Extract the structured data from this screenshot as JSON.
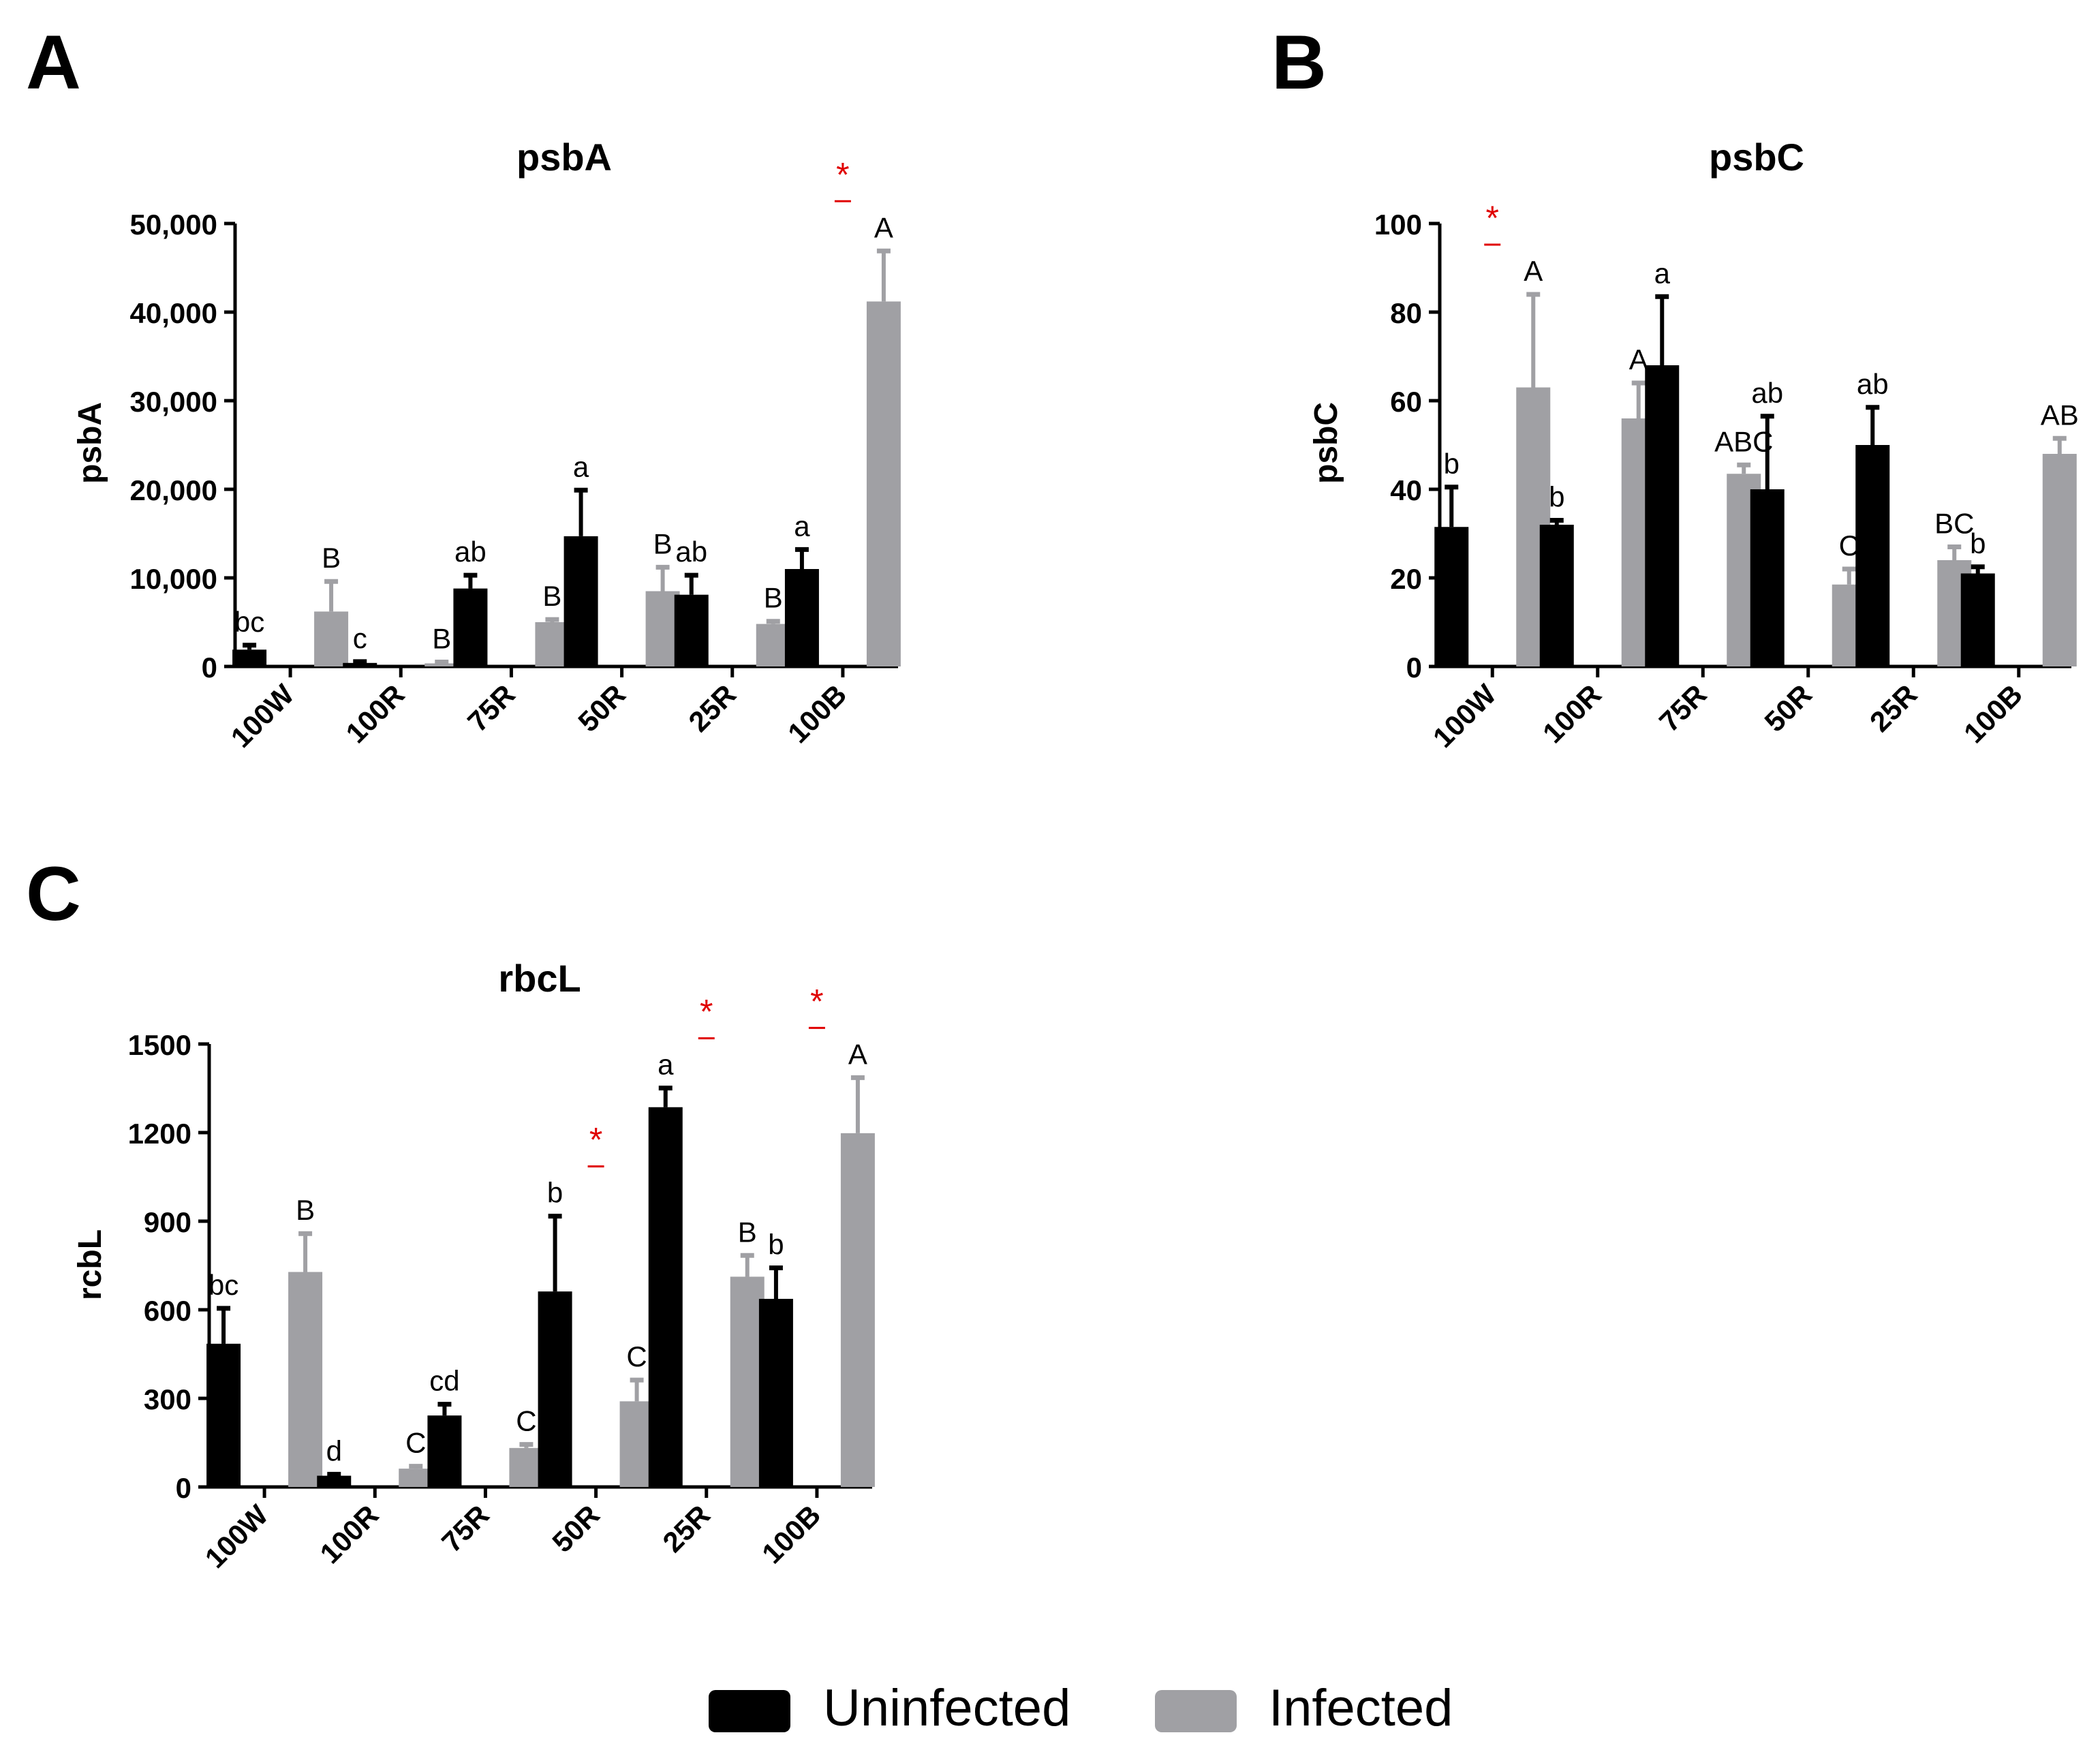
{
  "colors": {
    "uninfected": "#000000",
    "infected": "#a0a0a4",
    "significance": "#e00000",
    "axis": "#000000"
  },
  "legend": {
    "placement": "bottom-center",
    "items": [
      {
        "label": "Uninfected",
        "color": "#000000"
      },
      {
        "label": "Infected",
        "color": "#a0a0a4"
      }
    ]
  },
  "chart_data": [
    {
      "panel": "A",
      "type": "bar",
      "title": "psbA",
      "ylabel": "psbA",
      "xlabel": "",
      "ylim": [
        0,
        50000
      ],
      "yticks": [
        0,
        10000,
        20000,
        30000,
        40000,
        50000
      ],
      "ytick_labels": [
        "0",
        "10,000",
        "20,000",
        "30,000",
        "40,000",
        "50,000"
      ],
      "categories": [
        "100W",
        "100R",
        "75R",
        "50R",
        "25R",
        "100B"
      ],
      "series": [
        {
          "name": "Uninfected",
          "values": [
            1900,
            400,
            8800,
            14700,
            8100,
            11000
          ],
          "errors": [
            500,
            150,
            1500,
            5200,
            2200,
            2200
          ],
          "letters": [
            "bc",
            "c",
            "ab",
            "a",
            "ab",
            "a"
          ]
        },
        {
          "name": "Infected",
          "values": [
            6200,
            350,
            5000,
            8500,
            4800,
            41200
          ],
          "errors": [
            3400,
            150,
            300,
            2700,
            300,
            5700
          ],
          "letters": [
            "B",
            "B",
            "B",
            "B",
            "B",
            "A"
          ]
        }
      ],
      "significance": [
        {
          "category": "100B",
          "label": "*"
        }
      ]
    },
    {
      "panel": "B",
      "type": "bar",
      "title": "psbC",
      "ylabel": "psbC",
      "xlabel": "",
      "ylim": [
        0,
        100
      ],
      "yticks": [
        0,
        20,
        40,
        60,
        80,
        100
      ],
      "ytick_labels": [
        "0",
        "20",
        "40",
        "60",
        "80",
        "100"
      ],
      "categories": [
        "100W",
        "100R",
        "75R",
        "50R",
        "25R",
        "100B"
      ],
      "series": [
        {
          "name": "Uninfected",
          "values": [
            31.5,
            32,
            68,
            40,
            50,
            21
          ],
          "errors": [
            9,
            1,
            15.5,
            16.5,
            8.5,
            1.5
          ],
          "letters": [
            "b",
            "b",
            "a",
            "ab",
            "ab",
            "b"
          ]
        },
        {
          "name": "Infected",
          "values": [
            63,
            56,
            43.5,
            18.5,
            24,
            48
          ],
          "errors": [
            21,
            8,
            2,
            3.5,
            3,
            3.5
          ],
          "letters": [
            "A",
            "A",
            "ABC",
            "C",
            "BC",
            "AB"
          ]
        }
      ],
      "significance": [
        {
          "category": "100W",
          "label": "*"
        }
      ]
    },
    {
      "panel": "C",
      "type": "bar",
      "title": "rbcL",
      "ylabel": "rcbL",
      "xlabel": "",
      "ylim": [
        0,
        1500
      ],
      "yticks": [
        0,
        300,
        600,
        900,
        1200,
        1500
      ],
      "ytick_labels": [
        "0",
        "300",
        "600",
        "900",
        "1200",
        "1500"
      ],
      "categories": [
        "100W",
        "100R",
        "75R",
        "50R",
        "25R",
        "100B"
      ],
      "series": [
        {
          "name": "Uninfected",
          "values": [
            485,
            38,
            242,
            662,
            1286,
            637
          ],
          "errors": [
            120,
            5,
            38,
            255,
            65,
            105
          ],
          "letters": [
            "bc",
            "d",
            "cd",
            "b",
            "a",
            "b"
          ]
        },
        {
          "name": "Infected",
          "values": [
            728,
            62,
            132,
            290,
            712,
            1198
          ],
          "errors": [
            130,
            8,
            12,
            72,
            72,
            188
          ],
          "letters": [
            "B",
            "C",
            "C",
            "C",
            "B",
            "A"
          ]
        }
      ],
      "significance": [
        {
          "category": "50R",
          "label": "*"
        },
        {
          "category": "25R",
          "label": "*"
        },
        {
          "category": "100B",
          "label": "*"
        }
      ]
    }
  ]
}
